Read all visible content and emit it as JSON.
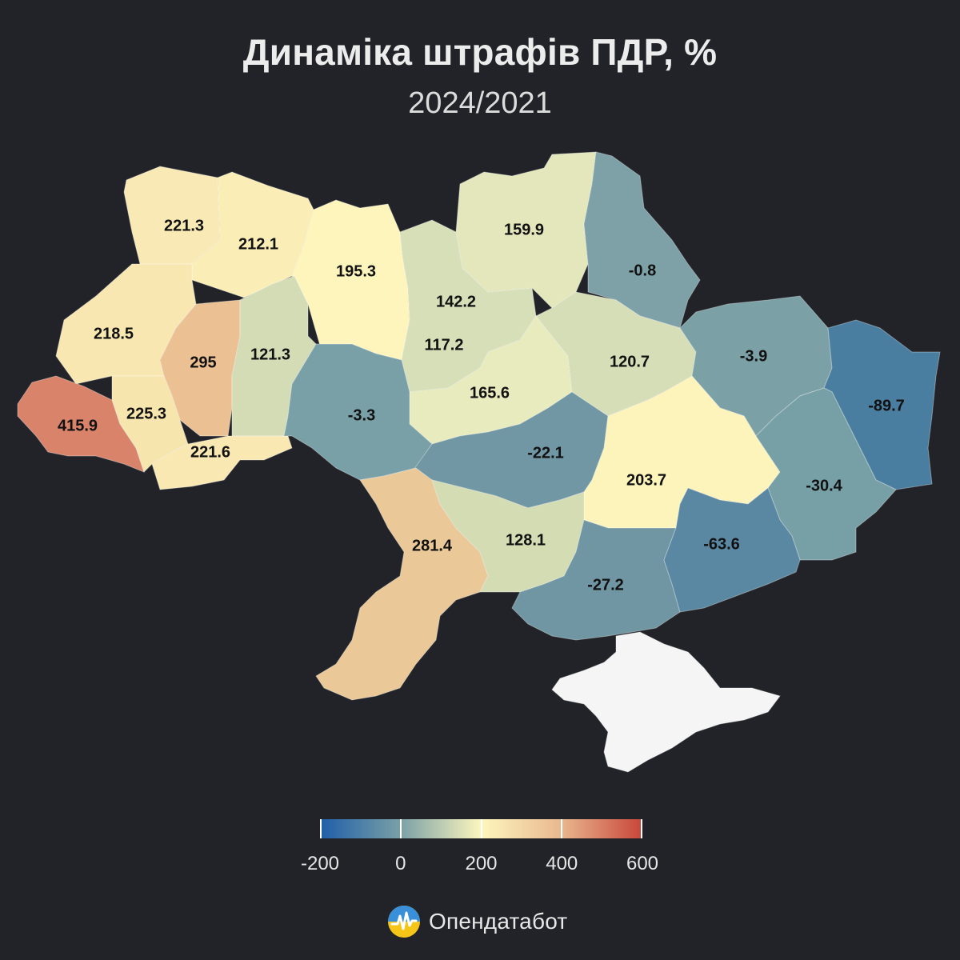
{
  "title": "Динаміка штрафів ПДР, %",
  "subtitle": "2024/2021",
  "map_data": {
    "unit": "%",
    "regions": [
      {
        "value": "221.3",
        "color": "#f9e9b4"
      },
      {
        "value": "212.1",
        "color": "#faeeb6"
      },
      {
        "value": "195.3",
        "color": "#fdf5bc"
      },
      {
        "value": "218.5",
        "color": "#f8e7b1"
      },
      {
        "value": "295",
        "color": "#ebc194"
      },
      {
        "value": "121.3",
        "color": "#d4dcb6"
      },
      {
        "value": "415.9",
        "color": "#d8836a"
      },
      {
        "value": "225.3",
        "color": "#f7e5ae"
      },
      {
        "value": "221.6",
        "color": "#f9e8b2"
      },
      {
        "value": "142.2",
        "color": "#ccd8b5"
      },
      {
        "value": "117.2",
        "color": "#d6dfb8"
      },
      {
        "value": "159.9",
        "color": "#e3e7bb"
      },
      {
        "value": "-0.8",
        "color": "#7ea1a8"
      },
      {
        "value": "165.6",
        "color": "#e8ebbd"
      },
      {
        "value": "120.7",
        "color": "#d6deb8"
      },
      {
        "value": "-3.9",
        "color": "#7ba0a6"
      },
      {
        "value": "-89.7",
        "color": "#4a7ea0"
      },
      {
        "value": "-3.3",
        "color": "#7aa0a7"
      },
      {
        "value": "-22.1",
        "color": "#7097a3"
      },
      {
        "value": "203.7",
        "color": "#fcf4bb"
      },
      {
        "value": "-30.4",
        "color": "#76a0a6"
      },
      {
        "value": "281.4",
        "color": "#eac897"
      },
      {
        "value": "128.1",
        "color": "#d4dcb4"
      },
      {
        "value": "-27.2",
        "color": "#6f96a2"
      },
      {
        "value": "-63.6",
        "color": "#5a88a2"
      },
      {
        "value": "",
        "color": "#f5f5f5"
      }
    ]
  },
  "legend": {
    "ticks": [
      "-200",
      "0",
      "200",
      "400",
      "600"
    ],
    "range": [
      -200,
      600
    ],
    "colors": [
      "#1f5ea8",
      "#7aa0a7",
      "#fdf6bd",
      "#e9b78e",
      "#c8453a"
    ]
  },
  "brand": {
    "name": "Опендатабот",
    "icon": "opendatabot-logo"
  }
}
